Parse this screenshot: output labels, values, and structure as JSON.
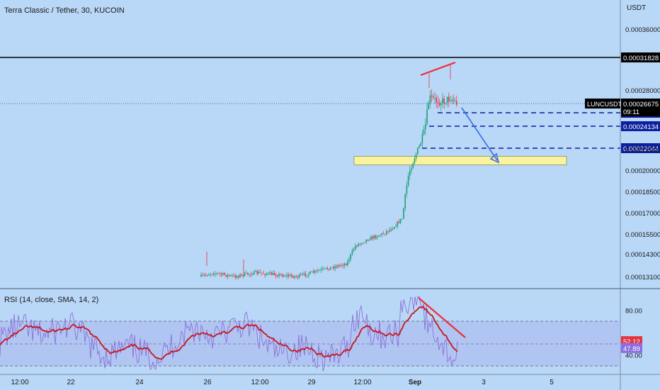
{
  "chart_data": [
    {
      "type": "candlestick",
      "title": "Terra Classic / Tether, 30, KUCOIN",
      "symbol": "LUNCUSDT",
      "price_unit": "USDT",
      "last_price": "0.00026675",
      "countdown": "09:11",
      "y_ticks": [
        "0.00036000",
        "0.00028000",
        "0.00022000",
        "0.00020000",
        "0.00018500",
        "0.00017000",
        "0.00015500",
        "0.00014300",
        "0.00013100"
      ],
      "y_tick_values": [
        0.00036,
        0.00028,
        0.00022,
        0.0002,
        0.000185,
        0.00017,
        0.000155,
        0.000143,
        0.000131
      ],
      "x_ticks": [
        "12:00",
        "22",
        "24",
        "26",
        "12:00",
        "29",
        "12:00",
        "Sep",
        "3",
        "5"
      ],
      "horizontal_levels": [
        {
          "label": "0.00031828",
          "value": 0.00031828,
          "style": "solid",
          "color": "#000000"
        },
        {
          "label": "0.00025470",
          "value": 0.0002547,
          "style": "dashed",
          "color": "#0d1f9e"
        },
        {
          "label": "0.00024134",
          "value": 0.00024134,
          "style": "dashed",
          "color": "#0d1f9e"
        },
        {
          "label": "0.00022044",
          "value": 0.00022044,
          "style": "dashed",
          "color": "#0d1f9e"
        }
      ],
      "support_zone": {
        "low": 0.000205,
        "high": 0.000213,
        "color": "#fdf59a"
      },
      "annotations": [
        {
          "type": "trendline",
          "color": "#ef2d3a",
          "description": "rising resistance over top wicks"
        },
        {
          "type": "arrow",
          "color": "#3b6ee8",
          "description": "projected move down to support zone"
        }
      ],
      "candles_summary": {
        "trend": "uptrend then top",
        "start_price": 0.000131,
        "peak_price": 0.00031828,
        "current_price": 0.00026675
      },
      "colors": {
        "up": "#1aa078",
        "down": "#e5343f",
        "background": "#b9d7f7"
      }
    },
    {
      "type": "line",
      "title": "RSI (14, close, SMA, 14, 2)",
      "y_ticks": [
        "80.00",
        "40.00"
      ],
      "y_tick_values": [
        80,
        40
      ],
      "rsi_value": "52.12",
      "sma_value": "47.89",
      "bands": [
        70,
        30
      ],
      "series": [
        {
          "name": "RSI",
          "color": "#8c72d8"
        },
        {
          "name": "SMA",
          "color": "#c8161d"
        }
      ],
      "annotation": {
        "type": "trendline",
        "color": "#ef2d3a",
        "description": "falling RSI highs (bearish divergence)"
      }
    }
  ]
}
